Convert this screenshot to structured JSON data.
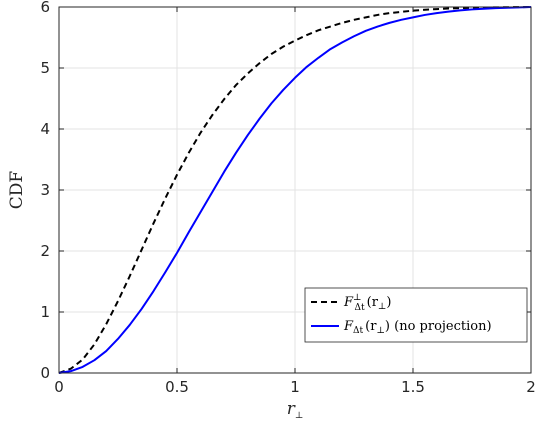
{
  "chart_data": {
    "type": "line",
    "xlabel_main": "r",
    "xlabel_sub": "⊥",
    "ylabel": "CDF",
    "xlim": [
      0,
      2
    ],
    "ylim": [
      0,
      6
    ],
    "xticks": [
      0,
      0.5,
      1,
      1.5,
      2
    ],
    "xtick_labels": [
      "0",
      "0.5",
      "1",
      "1.5",
      "2"
    ],
    "yticks": [
      0,
      1,
      2,
      3,
      4,
      5,
      6
    ],
    "ytick_labels": [
      "0",
      "1",
      "2",
      "3",
      "4",
      "5",
      "6"
    ],
    "grid": true,
    "legend_position": "bottom-right",
    "series": [
      {
        "name": "F⊥Δt(r⊥)",
        "legend_main": "F",
        "legend_sup": "⊥",
        "legend_sub": "Δt",
        "legend_rest": "(r",
        "legend_rest_sub": "⊥",
        "legend_tail": ")",
        "color": "#000000",
        "dash": "6,4",
        "x": [
          0,
          0.05,
          0.1,
          0.15,
          0.2,
          0.25,
          0.3,
          0.35,
          0.4,
          0.45,
          0.5,
          0.55,
          0.6,
          0.65,
          0.7,
          0.75,
          0.8,
          0.85,
          0.9,
          0.95,
          1.0,
          1.05,
          1.1,
          1.15,
          1.2,
          1.25,
          1.3,
          1.35,
          1.4,
          1.45,
          1.5,
          1.55,
          1.6,
          1.65,
          1.7,
          1.75,
          1.8,
          1.85,
          1.9,
          1.95,
          2.0
        ],
        "y": [
          0,
          0.07,
          0.22,
          0.47,
          0.8,
          1.18,
          1.59,
          2.02,
          2.45,
          2.86,
          3.25,
          3.61,
          3.94,
          4.23,
          4.49,
          4.72,
          4.91,
          5.08,
          5.23,
          5.35,
          5.45,
          5.54,
          5.62,
          5.68,
          5.74,
          5.79,
          5.83,
          5.87,
          5.9,
          5.92,
          5.94,
          5.955,
          5.966,
          5.975,
          5.982,
          5.987,
          5.991,
          5.994,
          5.996,
          5.998,
          6.0
        ]
      },
      {
        "name": "FΔt(r⊥) (no projection)",
        "legend_main": "F",
        "legend_sup": "",
        "legend_sub": "Δt",
        "legend_rest": "(r",
        "legend_rest_sub": "⊥",
        "legend_tail": ") (no projection)",
        "color": "#0000ff",
        "dash": "",
        "x": [
          0,
          0.05,
          0.1,
          0.15,
          0.2,
          0.25,
          0.3,
          0.35,
          0.4,
          0.45,
          0.5,
          0.55,
          0.6,
          0.65,
          0.7,
          0.75,
          0.8,
          0.85,
          0.9,
          0.95,
          1.0,
          1.05,
          1.1,
          1.15,
          1.2,
          1.25,
          1.3,
          1.35,
          1.4,
          1.45,
          1.5,
          1.55,
          1.6,
          1.65,
          1.7,
          1.75,
          1.8,
          1.85,
          1.9,
          1.95,
          2.0
        ],
        "y": [
          0,
          0.03,
          0.1,
          0.21,
          0.36,
          0.56,
          0.79,
          1.05,
          1.34,
          1.65,
          1.97,
          2.31,
          2.64,
          2.97,
          3.3,
          3.61,
          3.9,
          4.17,
          4.42,
          4.64,
          4.84,
          5.02,
          5.17,
          5.31,
          5.42,
          5.52,
          5.61,
          5.68,
          5.74,
          5.79,
          5.83,
          5.87,
          5.9,
          5.925,
          5.945,
          5.96,
          5.972,
          5.981,
          5.988,
          5.994,
          6.0
        ]
      }
    ]
  }
}
